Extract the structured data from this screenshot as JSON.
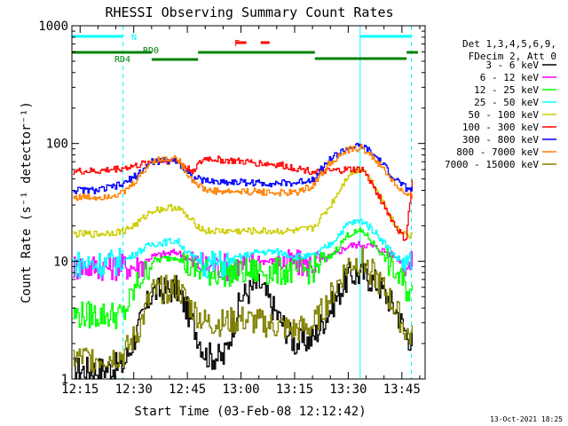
{
  "chart_data": {
    "type": "line",
    "title": "RHESSI Observing Summary Count Rates",
    "xlabel": "Start Time (03-Feb-08 12:12:42)",
    "ylabel": "Count Rate (s⁻¹ detector⁻¹)",
    "y_scale": "log",
    "ylim": [
      1,
      1000
    ],
    "xlim": [
      "12:12:42",
      "13:51:30"
    ],
    "x_ticks": [
      "12:15",
      "12:30",
      "12:45",
      "13:00",
      "13:15",
      "13:30",
      "13:45"
    ],
    "y_ticks": [
      "1",
      "10",
      "100",
      "1000"
    ],
    "grid": false,
    "legend_position": "right",
    "legend_header": [
      "Det 1,3,4,5,6,9,",
      "FDecim 2, Att 0"
    ],
    "series": [
      {
        "name": "3 - 6 keV",
        "color": "#000000",
        "x": [
          "12:13",
          "12:20",
          "12:27",
          "12:31",
          "12:35",
          "12:42",
          "12:46",
          "12:50",
          "12:55",
          "13:00",
          "13:05",
          "13:10",
          "13:15",
          "13:20",
          "13:25",
          "13:30",
          "13:34",
          "13:38",
          "13:43",
          "13:46",
          "13:48"
        ],
        "values": [
          1.2,
          1.2,
          1.3,
          2.6,
          5.5,
          5.8,
          3.2,
          1.6,
          1.5,
          5.0,
          6.5,
          3.5,
          2.0,
          2.2,
          4.0,
          7.5,
          7.8,
          6.5,
          4.0,
          2.5,
          2.0
        ]
      },
      {
        "name": "6 - 12 keV",
        "color": "#ff00ff",
        "x": [
          "12:13",
          "12:20",
          "12:27",
          "12:31",
          "12:35",
          "12:42",
          "12:46",
          "12:50",
          "12:55",
          "13:00",
          "13:05",
          "13:10",
          "13:15",
          "13:20",
          "13:25",
          "13:30",
          "13:34",
          "13:38",
          "13:43",
          "13:46",
          "13:48"
        ],
        "values": [
          9,
          9,
          9,
          9,
          11,
          12,
          10,
          9,
          9,
          9,
          10,
          10,
          9.5,
          9.5,
          11,
          13.5,
          14,
          13,
          11,
          9.5,
          9
        ]
      },
      {
        "name": "12 - 25 keV",
        "color": "#00ff00",
        "x": [
          "12:13",
          "12:20",
          "12:27",
          "12:31",
          "12:35",
          "12:42",
          "12:46",
          "12:50",
          "12:55",
          "13:00",
          "13:05",
          "13:10",
          "13:15",
          "13:20",
          "13:25",
          "13:30",
          "13:34",
          "13:38",
          "13:43",
          "13:46",
          "13:48"
        ],
        "values": [
          3.5,
          3.5,
          3.5,
          6.5,
          10,
          11,
          8.5,
          8,
          8,
          8,
          8.2,
          8.2,
          8.2,
          8.5,
          11,
          17,
          18,
          13,
          8,
          6,
          5
        ]
      },
      {
        "name": "25 - 50 keV",
        "color": "#00ffff",
        "x": [
          "12:13",
          "12:20",
          "12:27",
          "12:31",
          "12:35",
          "12:42",
          "12:46",
          "12:50",
          "12:55",
          "13:00",
          "13:05",
          "13:10",
          "13:15",
          "13:20",
          "13:25",
          "13:30",
          "13:34",
          "13:38",
          "13:43",
          "13:46",
          "13:48"
        ],
        "values": [
          9.5,
          9.5,
          10,
          12,
          14,
          15,
          11,
          9.5,
          9.5,
          11,
          12,
          12,
          11,
          11,
          14,
          21,
          22,
          17,
          11,
          9.5,
          9.5
        ]
      },
      {
        "name": "50 - 100 keV",
        "color": "#cccc00",
        "x": [
          "12:13",
          "12:20",
          "12:27",
          "12:31",
          "12:35",
          "12:42",
          "12:46",
          "12:50",
          "12:55",
          "13:00",
          "13:05",
          "13:10",
          "13:15",
          "13:20",
          "13:25",
          "13:30",
          "13:34",
          "13:38",
          "13:43",
          "13:46",
          "13:48"
        ],
        "values": [
          17,
          17,
          18,
          21,
          27,
          29,
          22,
          18,
          18,
          18,
          18,
          18,
          18,
          19,
          30,
          55,
          62,
          40,
          20,
          17,
          16
        ]
      },
      {
        "name": "100 - 300 keV",
        "color": "#ff0000",
        "x": [
          "12:13",
          "12:20",
          "12:27",
          "12:31",
          "12:35",
          "12:42",
          "12:46",
          "12:50",
          "12:55",
          "13:00",
          "13:05",
          "13:10",
          "13:15",
          "13:20",
          "13:25",
          "13:30",
          "13:34",
          "13:38",
          "13:43",
          "13:46",
          "13:48"
        ],
        "values": [
          58,
          58,
          62,
          65,
          70,
          72,
          58,
          75,
          72,
          70,
          68,
          66,
          62,
          58,
          58,
          60,
          60,
          38,
          20,
          15,
          55
        ]
      },
      {
        "name": "300 - 800 keV",
        "color": "#0000ff",
        "x": [
          "12:13",
          "12:20",
          "12:27",
          "12:31",
          "12:35",
          "12:42",
          "12:46",
          "12:50",
          "12:55",
          "13:00",
          "13:05",
          "13:10",
          "13:15",
          "13:20",
          "13:25",
          "13:30",
          "13:34",
          "13:38",
          "13:43",
          "13:46",
          "13:48"
        ],
        "values": [
          40,
          40,
          45,
          55,
          70,
          72,
          52,
          48,
          47,
          47,
          46,
          46,
          46,
          50,
          75,
          92,
          95,
          75,
          50,
          42,
          40
        ]
      },
      {
        "name": "800 - 7000 keV",
        "color": "#ff8000",
        "x": [
          "12:13",
          "12:20",
          "12:27",
          "12:31",
          "12:35",
          "12:42",
          "12:46",
          "12:50",
          "12:55",
          "13:00",
          "13:05",
          "13:10",
          "13:15",
          "13:20",
          "13:25",
          "13:30",
          "13:34",
          "13:38",
          "13:43",
          "13:46",
          "13:48"
        ],
        "values": [
          35,
          35,
          38,
          50,
          72,
          75,
          50,
          40,
          39,
          39,
          39,
          38,
          38,
          44,
          70,
          88,
          92,
          70,
          45,
          36,
          34
        ]
      },
      {
        "name": "7000 - 15000 keV",
        "color": "#808000",
        "x": [
          "12:13",
          "12:20",
          "12:27",
          "12:31",
          "12:35",
          "12:42",
          "12:46",
          "12:50",
          "12:55",
          "13:00",
          "13:05",
          "13:10",
          "13:15",
          "13:20",
          "13:25",
          "13:30",
          "13:34",
          "13:38",
          "13:43",
          "13:46",
          "13:48"
        ],
        "values": [
          1.5,
          1.5,
          1.6,
          2.5,
          5.5,
          6.0,
          4.0,
          3.0,
          3.0,
          3.2,
          3.0,
          2.8,
          2.6,
          2.8,
          5.0,
          9.5,
          10,
          7,
          4.0,
          2.5,
          2.2
        ]
      }
    ],
    "annotations": {
      "flag_labels": [
        {
          "text": "N",
          "color": "#00ffff"
        },
        {
          "text": "F",
          "color": "#ff0000"
        },
        {
          "text": "RD0",
          "color": "#008000"
        },
        {
          "text": "RD4",
          "color": "#008000"
        }
      ],
      "night_intervals": [
        [
          "12:12:42",
          "12:27:00"
        ],
        [
          "13:33:20",
          "13:47:40"
        ]
      ],
      "flare_intervals": [
        [
          "12:58:30",
          "13:01:30"
        ],
        [
          "13:05:30",
          "13:08:00"
        ]
      ],
      "rd0_intervals": [
        [
          "12:35:00",
          "12:48:00"
        ],
        [
          "12:48:00",
          "13:20:40"
        ],
        [
          "13:20:40",
          "13:46:20"
        ],
        [
          "13:46:20",
          "13:49:30"
        ]
      ],
      "rd4_intervals": [
        [
          "12:12:42",
          "12:35:00"
        ]
      ],
      "dashed_markers": [
        "12:27:00",
        "13:47:40"
      ],
      "solid_markers": [
        "12:12:42",
        "13:33:20"
      ]
    },
    "footer_date": "13-Oct-2021 18:25"
  }
}
